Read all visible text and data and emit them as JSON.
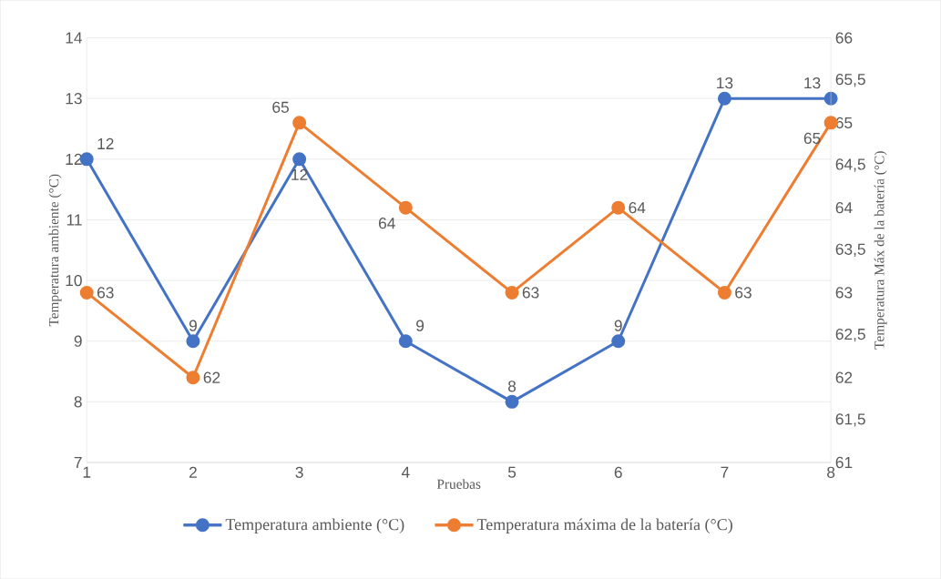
{
  "chart_data": {
    "type": "line",
    "xlabel": "Pruebas",
    "ylabel": "Temperatura ambiente (°C)",
    "y2label": "Temperatura Máx de la batería (°C)",
    "x": [
      1,
      2,
      3,
      4,
      5,
      6,
      7,
      8
    ],
    "xlim": [
      1,
      8
    ],
    "xticks": [
      1,
      2,
      3,
      4,
      5,
      6,
      7,
      8
    ],
    "ylim": [
      7,
      14
    ],
    "yticks": [
      7,
      8,
      9,
      10,
      11,
      12,
      13,
      14
    ],
    "y2lim": [
      61,
      66
    ],
    "y2ticks": [
      61,
      {
        "value": 61.5,
        "label": "61,5"
      },
      62,
      {
        "value": 62.5,
        "label": "62,5"
      },
      63,
      {
        "value": 63.5,
        "label": "63,5"
      },
      64,
      {
        "value": 64.5,
        "label": "64,5"
      },
      65,
      {
        "value": 65.5,
        "label": "65,5"
      },
      66
    ],
    "series": [
      {
        "name": "Temperatura ambiente (°C)",
        "color": "#4472c4",
        "values": [
          12,
          9,
          12,
          9,
          8,
          9,
          13,
          13
        ]
      },
      {
        "name": "Temperatura máxima de la batería  (°C)",
        "color": "#ed7d31",
        "axis": "y2",
        "values": [
          63,
          62,
          65,
          64,
          63,
          64,
          63,
          65
        ]
      }
    ],
    "data_labels": true,
    "grid": "y",
    "legend": "bottom",
    "marker": "circle",
    "line_style": "solid"
  }
}
